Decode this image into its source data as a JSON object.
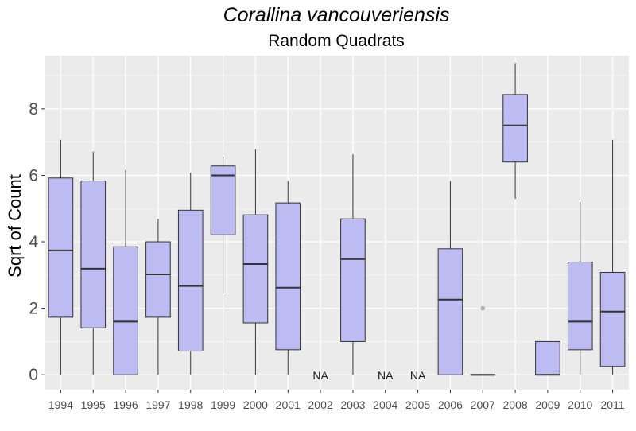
{
  "chart_data": {
    "type": "boxplot",
    "title": "Corallina vancouveriensis",
    "subtitle": "Random Quadrats",
    "ylabel": "Sqrt of Count",
    "xlabel": "",
    "ylim": [
      -0.45,
      9.6
    ],
    "yticks": [
      0,
      2,
      4,
      6,
      8
    ],
    "grid": true,
    "colors": {
      "panel": "#ebebeb",
      "grid": "#ffffff",
      "box_fill": "#bcbcf2",
      "box_stroke": "#333333",
      "outlier": "#b3b3b3"
    },
    "na_label": "NA",
    "categories": [
      "1994",
      "1995",
      "1996",
      "1997",
      "1998",
      "1999",
      "2000",
      "2001",
      "2002",
      "2003",
      "2004",
      "2005",
      "2006",
      "2007",
      "2008",
      "2009",
      "2010",
      "2011"
    ],
    "boxes": [
      {
        "category": "1994",
        "min": 0,
        "q1": 1.73,
        "median": 3.74,
        "q3": 5.92,
        "max": 7.07
      },
      {
        "category": "1995",
        "min": 0,
        "q1": 1.41,
        "median": 3.19,
        "q3": 5.83,
        "max": 6.71
      },
      {
        "category": "1996",
        "min": 0,
        "q1": 0,
        "median": 1.6,
        "q3": 3.85,
        "max": 6.16
      },
      {
        "category": "1997",
        "min": 0,
        "q1": 1.73,
        "median": 3.02,
        "q3": 4.0,
        "max": 4.69
      },
      {
        "category": "1998",
        "min": 0,
        "q1": 0.71,
        "median": 2.67,
        "q3": 4.95,
        "max": 6.08
      },
      {
        "category": "1999",
        "min": 2.45,
        "q1": 4.21,
        "median": 6.0,
        "q3": 6.28,
        "max": 6.56
      },
      {
        "category": "2000",
        "min": 0,
        "q1": 1.56,
        "median": 3.33,
        "q3": 4.81,
        "max": 6.78
      },
      {
        "category": "2001",
        "min": 0,
        "q1": 0.75,
        "median": 2.62,
        "q3": 5.17,
        "max": 5.83
      },
      {
        "category": "2002",
        "na": true
      },
      {
        "category": "2003",
        "min": 0,
        "q1": 1.0,
        "median": 3.48,
        "q3": 4.69,
        "max": 6.63
      },
      {
        "category": "2004",
        "na": true
      },
      {
        "category": "2005",
        "na": true
      },
      {
        "category": "2006",
        "min": 0,
        "q1": 0,
        "median": 2.26,
        "q3": 3.79,
        "max": 5.83
      },
      {
        "category": "2007",
        "min": 0,
        "q1": 0,
        "median": 0,
        "q3": 0,
        "max": 0,
        "outliers": [
          2.0
        ]
      },
      {
        "category": "2008",
        "min": 5.29,
        "q1": 6.4,
        "median": 7.5,
        "q3": 8.43,
        "max": 9.38
      },
      {
        "category": "2009",
        "min": 0,
        "q1": 0,
        "median": 0,
        "q3": 1.0,
        "max": 1.0
      },
      {
        "category": "2010",
        "min": 0,
        "q1": 0.75,
        "median": 1.6,
        "q3": 3.39,
        "max": 5.2
      },
      {
        "category": "2011",
        "min": 0,
        "q1": 0.25,
        "median": 1.9,
        "q3": 3.08,
        "max": 7.07
      }
    ]
  }
}
